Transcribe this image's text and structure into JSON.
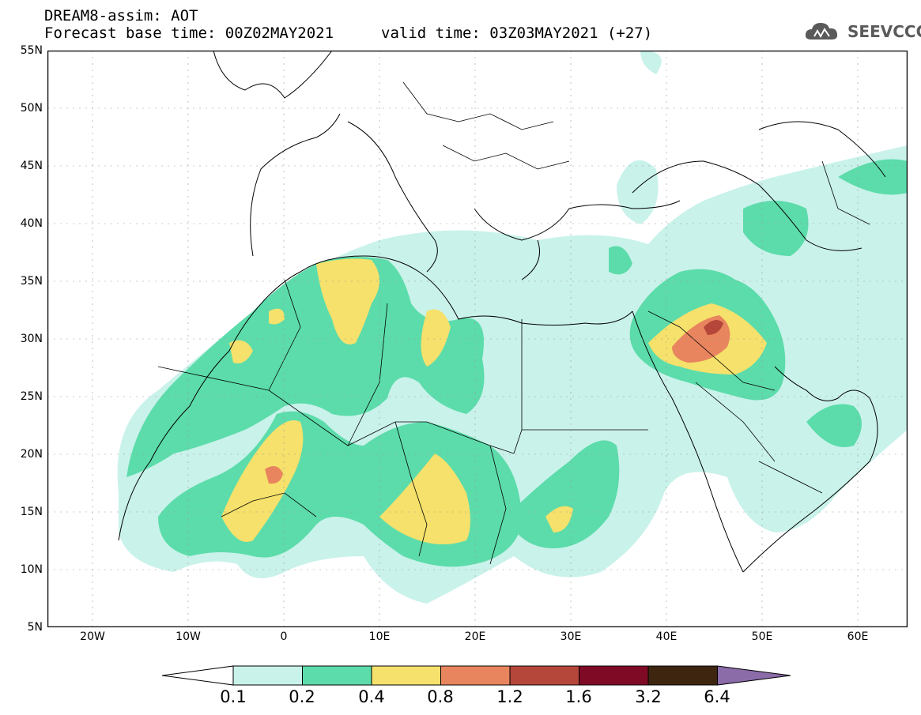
{
  "header": {
    "line1": "DREAM8-assim: AOT",
    "line2": "Forecast base time: 00Z02MAY2021",
    "valid": "valid time: 03Z03MAY2021 (+27)",
    "logo_text": "SEEVCCC"
  },
  "axes": {
    "lat_labels": [
      "55N",
      "50N",
      "45N",
      "40N",
      "35N",
      "30N",
      "25N",
      "20N",
      "15N",
      "10N",
      "5N"
    ],
    "lon_labels": [
      "20W",
      "10W",
      "0",
      "10E",
      "20E",
      "30E",
      "40E",
      "50E",
      "60E"
    ]
  },
  "colorbar": {
    "labels": [
      "0.1",
      "0.2",
      "0.4",
      "0.8",
      "1.2",
      "1.6",
      "3.2",
      "6.4"
    ],
    "colors": [
      "#ffffff",
      "#c9f2ea",
      "#5cdcab",
      "#f5e16b",
      "#e8855e",
      "#b4463a",
      "#7f0a26",
      "#3d2510",
      "#8b6ba8"
    ]
  },
  "map_colors": {
    "ocean": "#ffffff",
    "border": "#000000",
    "level1": "#c9f2ea",
    "level2": "#5cdcab",
    "level3": "#f5e16b",
    "level4": "#e8855e",
    "level5": "#b4463a"
  }
}
